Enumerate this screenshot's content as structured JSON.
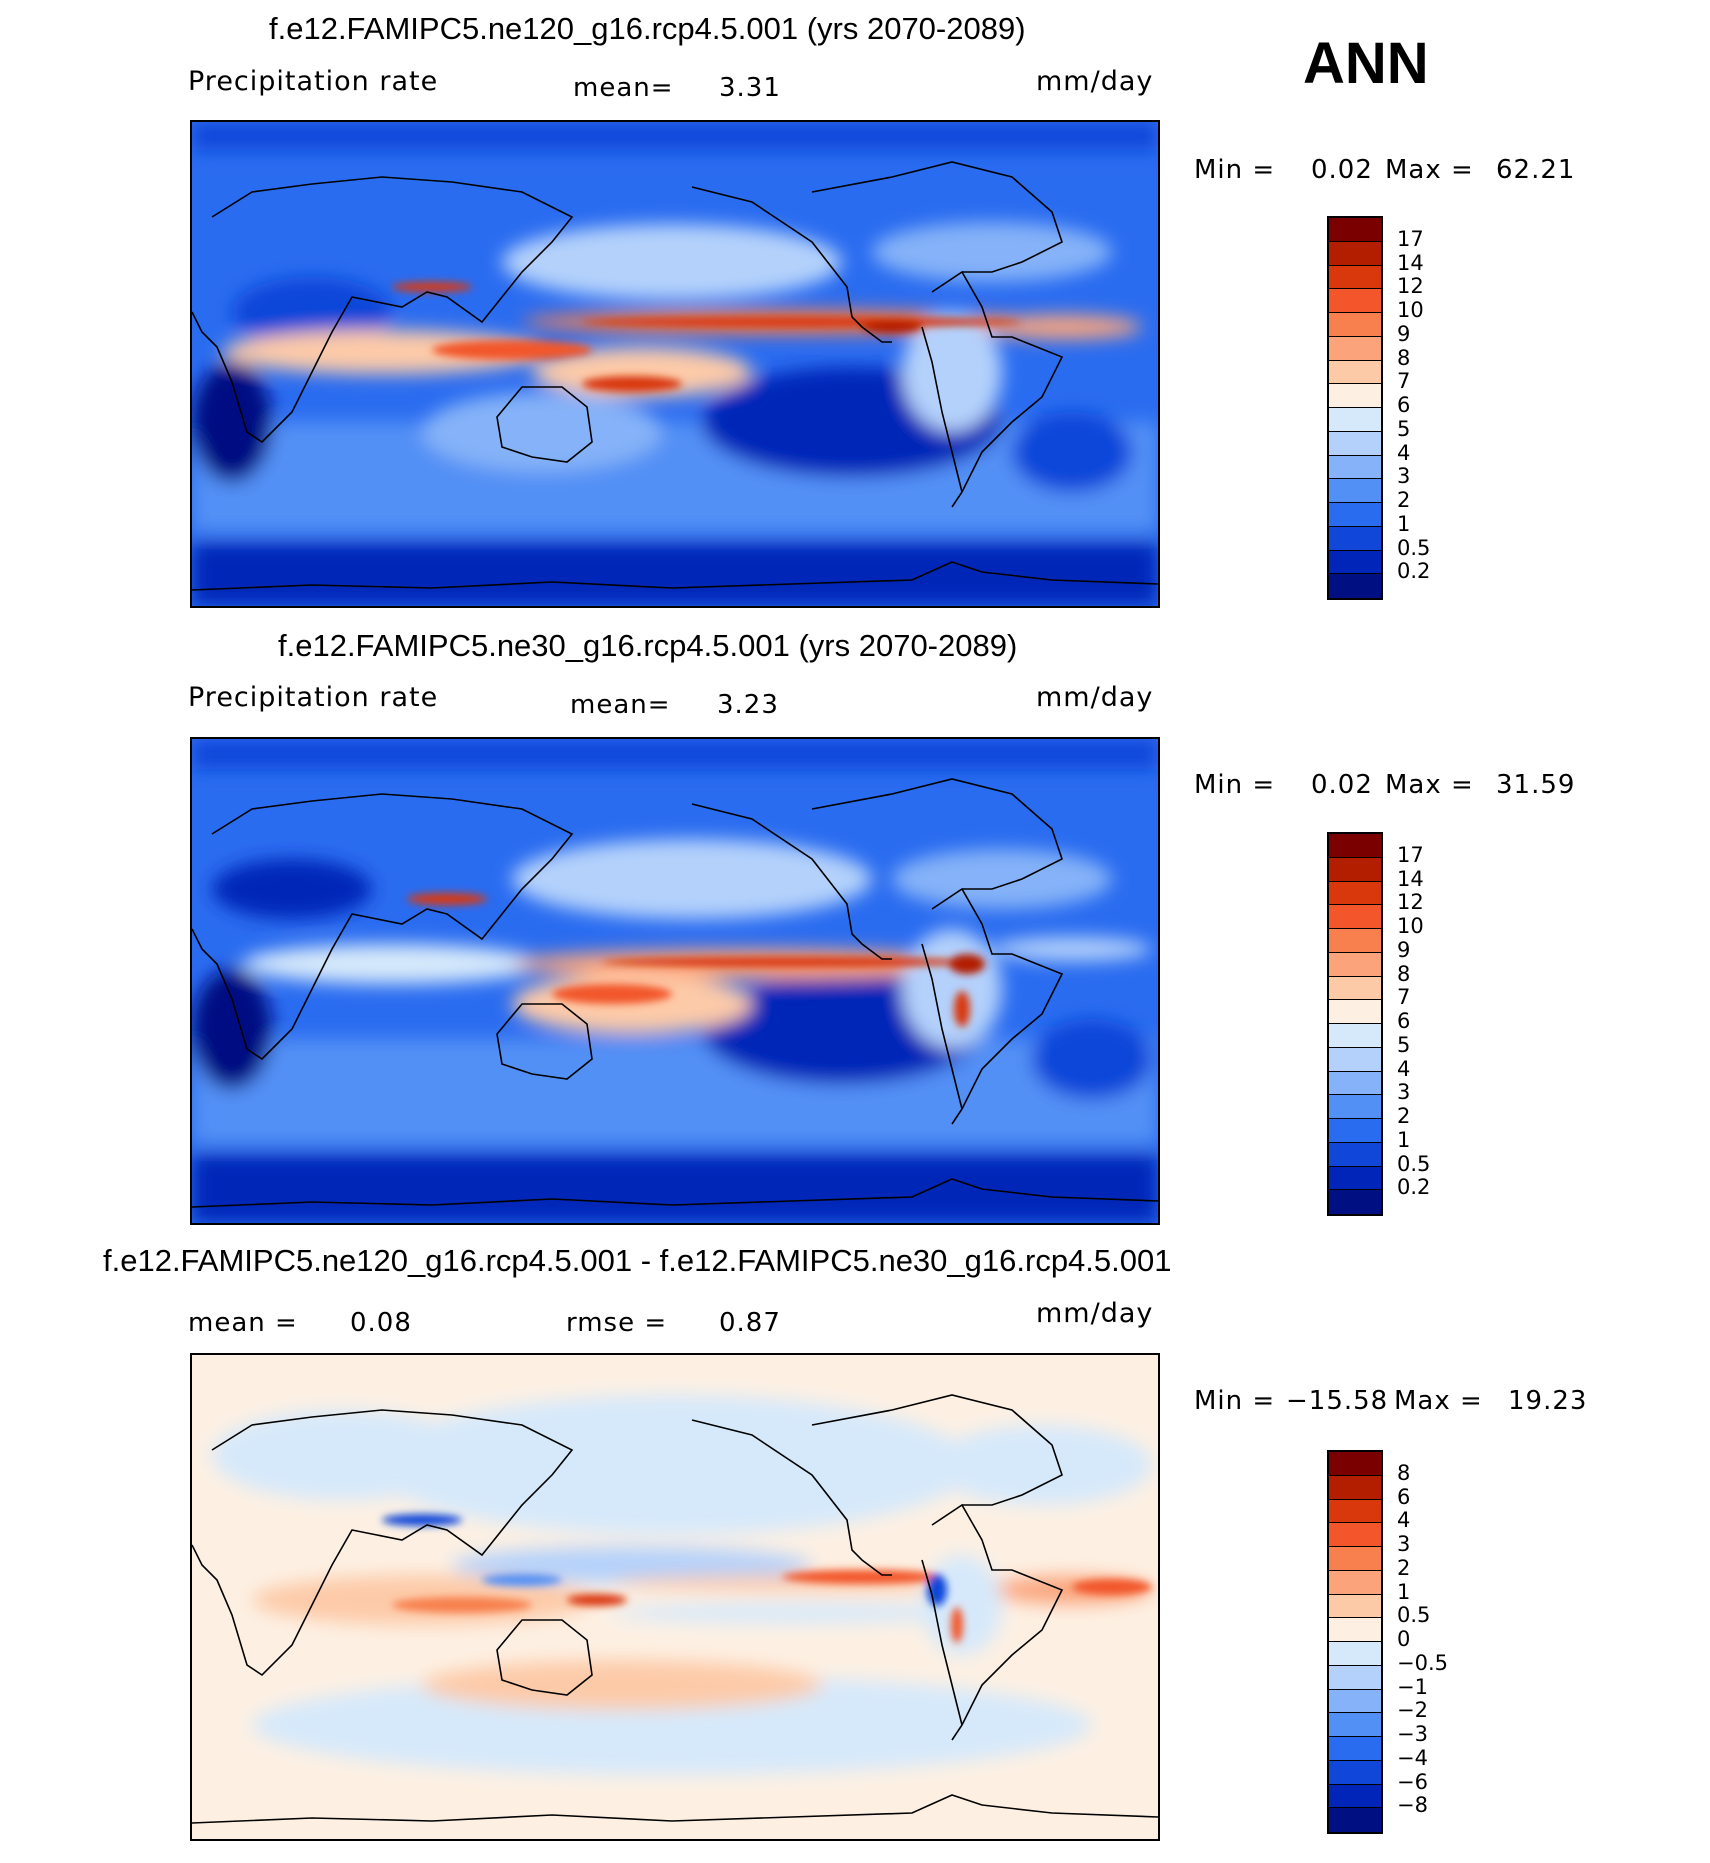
{
  "season": "ANN",
  "panels": [
    {
      "title": "f.e12.FAMIPC5.ne120_g16.rcp4.5.001 (yrs 2070-2089)",
      "variable": "Precipitation rate",
      "stat1_label": "mean=",
      "stat1_value": "3.31",
      "stat2_label": "",
      "stat2_value": "",
      "units": "mm/day",
      "min_label": "Min =",
      "min_value": "0.02",
      "max_label": "Max =",
      "max_value": "62.21",
      "colorbar_labels": [
        "17",
        "14",
        "12",
        "10",
        "9",
        "8",
        "7",
        "6",
        "5",
        "4",
        "3",
        "2",
        "1",
        "0.5",
        "0.2"
      ],
      "colors": [
        "#7a0000",
        "#b31d00",
        "#d9380c",
        "#f2562a",
        "#f7804e",
        "#fba47c",
        "#fdcaa8",
        "#fdf0e3",
        "#d6e9fb",
        "#b4d1fb",
        "#85b2f8",
        "#5290f5",
        "#2a6cf0",
        "#1047d9",
        "#0025b8",
        "#001082"
      ]
    },
    {
      "title": "f.e12.FAMIPC5.ne30_g16.rcp4.5.001 (yrs 2070-2089)",
      "variable": "Precipitation rate",
      "stat1_label": "mean=",
      "stat1_value": "3.23",
      "stat2_label": "",
      "stat2_value": "",
      "units": "mm/day",
      "min_label": "Min =",
      "min_value": "0.02",
      "max_label": "Max =",
      "max_value": "31.59",
      "colorbar_labels": [
        "17",
        "14",
        "12",
        "10",
        "9",
        "8",
        "7",
        "6",
        "5",
        "4",
        "3",
        "2",
        "1",
        "0.5",
        "0.2"
      ],
      "colors": [
        "#7a0000",
        "#b31d00",
        "#d9380c",
        "#f2562a",
        "#f7804e",
        "#fba47c",
        "#fdcaa8",
        "#fdf0e3",
        "#d6e9fb",
        "#b4d1fb",
        "#85b2f8",
        "#5290f5",
        "#2a6cf0",
        "#1047d9",
        "#0025b8",
        "#001082"
      ]
    },
    {
      "title": "f.e12.FAMIPC5.ne120_g16.rcp4.5.001 - f.e12.FAMIPC5.ne30_g16.rcp4.5.001",
      "variable": "",
      "stat1_label": "mean =",
      "stat1_value": "0.08",
      "stat2_label": "rmse =",
      "stat2_value": "0.87",
      "units": "mm/day",
      "min_label": "Min =",
      "min_value": "−15.58",
      "max_label": "Max =",
      "max_value": "19.23",
      "colorbar_labels": [
        "8",
        "6",
        "4",
        "3",
        "2",
        "1",
        "0.5",
        "0",
        "−0.5",
        "−1",
        "−2",
        "−3",
        "−4",
        "−6",
        "−8"
      ],
      "colors": [
        "#7a0000",
        "#b31d00",
        "#d9380c",
        "#f2562a",
        "#f7804e",
        "#fba47c",
        "#fdcaa8",
        "#fdf0e3",
        "#d6e9fb",
        "#b4d1fb",
        "#85b2f8",
        "#5290f5",
        "#2a6cf0",
        "#1047d9",
        "#0025b8",
        "#001082"
      ]
    }
  ],
  "chart_data": [
    {
      "type": "heatmap",
      "title": "f.e12.FAMIPC5.ne120_g16.rcp4.5.001 (yrs 2070-2089)",
      "field": "Precipitation rate",
      "units": "mm/day",
      "mean": 3.31,
      "min": 0.02,
      "max": 62.21,
      "contour_levels": [
        0.2,
        0.5,
        1,
        2,
        3,
        4,
        5,
        6,
        7,
        8,
        9,
        10,
        12,
        14,
        17
      ],
      "projection": "cylindrical-equidistant, Pacific-centered"
    },
    {
      "type": "heatmap",
      "title": "f.e12.FAMIPC5.ne30_g16.rcp4.5.001 (yrs 2070-2089)",
      "field": "Precipitation rate",
      "units": "mm/day",
      "mean": 3.23,
      "min": 0.02,
      "max": 31.59,
      "contour_levels": [
        0.2,
        0.5,
        1,
        2,
        3,
        4,
        5,
        6,
        7,
        8,
        9,
        10,
        12,
        14,
        17
      ],
      "projection": "cylindrical-equidistant, Pacific-centered"
    },
    {
      "type": "heatmap",
      "title": "f.e12.FAMIPC5.ne120_g16.rcp4.5.001 - f.e12.FAMIPC5.ne30_g16.rcp4.5.001",
      "field": "",
      "units": "mm/day",
      "mean": 0.08,
      "rmse": 0.87,
      "min": -15.58,
      "max": 19.23,
      "contour_levels": [
        -8,
        -6,
        -4,
        -3,
        -2,
        -1,
        -0.5,
        0,
        0.5,
        1,
        2,
        3,
        4,
        6,
        8
      ],
      "projection": "cylindrical-equidistant, Pacific-centered"
    }
  ]
}
